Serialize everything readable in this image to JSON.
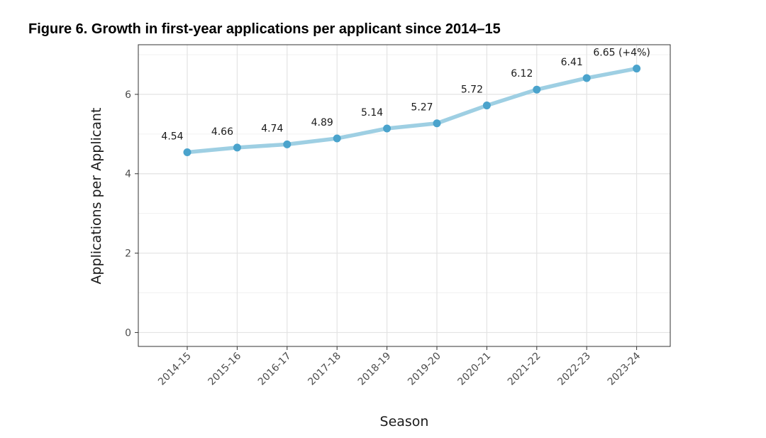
{
  "figure": {
    "title": "Figure 6. Growth in first-year applications per applicant since 2014–15"
  },
  "chart_data": {
    "type": "line",
    "title": "Figure 6. Growth in first-year applications per applicant since 2014–15",
    "xlabel": "Season",
    "ylabel": "Applications per Applicant",
    "categories": [
      "2014-15",
      "2015-16",
      "2016-17",
      "2017-18",
      "2018-19",
      "2019-20",
      "2020-21",
      "2021-22",
      "2022-23",
      "2023-24"
    ],
    "values": [
      4.54,
      4.66,
      4.74,
      4.89,
      5.14,
      5.27,
      5.72,
      6.12,
      6.41,
      6.65
    ],
    "labels": [
      "4.54",
      "4.66",
      "4.74",
      "4.89",
      "5.14",
      "5.27",
      "5.72",
      "6.12",
      "6.41",
      "6.65 (+4%)"
    ],
    "yticks": [
      0,
      2,
      4,
      6
    ],
    "ylim": [
      -0.35,
      7.25
    ],
    "grid": true,
    "line_color": "#9ecfe3",
    "point_color": "#4aa3cc"
  }
}
